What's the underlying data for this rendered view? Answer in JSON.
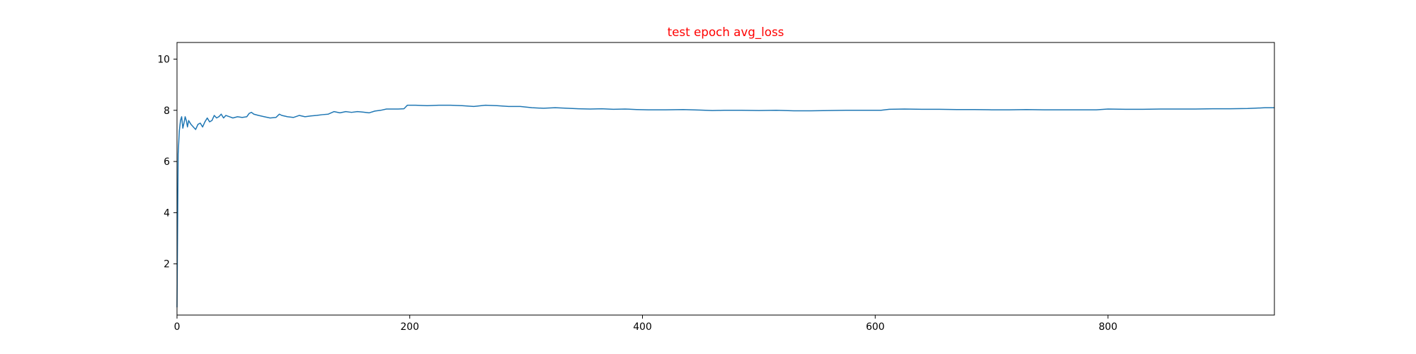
{
  "chart_data": {
    "type": "line",
    "title": "test epoch avg_loss",
    "title_color": "#ff0000",
    "line_color": "#1f77b4",
    "xlabel": "",
    "ylabel": "",
    "xlim": [
      0,
      943
    ],
    "ylim": [
      0.0,
      10.65
    ],
    "xticks": [
      0,
      200,
      400,
      600,
      800
    ],
    "yticks": [
      2,
      4,
      6,
      8,
      10
    ],
    "grid": false,
    "legend": "none",
    "series": [
      {
        "name": "avg_loss",
        "points": [
          [
            0,
            0.3
          ],
          [
            1,
            6.3
          ],
          [
            2,
            7.2
          ],
          [
            3,
            7.6
          ],
          [
            4,
            7.75
          ],
          [
            5,
            7.3
          ],
          [
            6,
            7.5
          ],
          [
            7,
            7.75
          ],
          [
            8,
            7.6
          ],
          [
            9,
            7.35
          ],
          [
            10,
            7.6
          ],
          [
            12,
            7.45
          ],
          [
            14,
            7.35
          ],
          [
            16,
            7.25
          ],
          [
            18,
            7.45
          ],
          [
            20,
            7.5
          ],
          [
            22,
            7.35
          ],
          [
            24,
            7.55
          ],
          [
            26,
            7.7
          ],
          [
            28,
            7.55
          ],
          [
            30,
            7.6
          ],
          [
            32,
            7.8
          ],
          [
            34,
            7.7
          ],
          [
            36,
            7.75
          ],
          [
            38,
            7.85
          ],
          [
            40,
            7.7
          ],
          [
            42,
            7.8
          ],
          [
            45,
            7.75
          ],
          [
            48,
            7.7
          ],
          [
            52,
            7.75
          ],
          [
            56,
            7.72
          ],
          [
            60,
            7.75
          ],
          [
            62,
            7.88
          ],
          [
            64,
            7.92
          ],
          [
            66,
            7.85
          ],
          [
            70,
            7.8
          ],
          [
            75,
            7.75
          ],
          [
            80,
            7.7
          ],
          [
            85,
            7.72
          ],
          [
            88,
            7.85
          ],
          [
            90,
            7.8
          ],
          [
            95,
            7.75
          ],
          [
            100,
            7.72
          ],
          [
            105,
            7.8
          ],
          [
            110,
            7.75
          ],
          [
            115,
            7.78
          ],
          [
            120,
            7.8
          ],
          [
            125,
            7.83
          ],
          [
            130,
            7.85
          ],
          [
            135,
            7.95
          ],
          [
            140,
            7.9
          ],
          [
            145,
            7.95
          ],
          [
            150,
            7.92
          ],
          [
            155,
            7.95
          ],
          [
            160,
            7.93
          ],
          [
            165,
            7.9
          ],
          [
            170,
            7.97
          ],
          [
            175,
            8.0
          ],
          [
            180,
            8.05
          ],
          [
            185,
            8.05
          ],
          [
            190,
            8.05
          ],
          [
            195,
            8.06
          ],
          [
            198,
            8.2
          ],
          [
            205,
            8.2
          ],
          [
            215,
            8.18
          ],
          [
            225,
            8.2
          ],
          [
            235,
            8.2
          ],
          [
            245,
            8.18
          ],
          [
            255,
            8.15
          ],
          [
            265,
            8.2
          ],
          [
            275,
            8.18
          ],
          [
            285,
            8.15
          ],
          [
            295,
            8.15
          ],
          [
            305,
            8.1
          ],
          [
            315,
            8.08
          ],
          [
            325,
            8.1
          ],
          [
            335,
            8.08
          ],
          [
            345,
            8.06
          ],
          [
            355,
            8.05
          ],
          [
            365,
            8.06
          ],
          [
            375,
            8.04
          ],
          [
            385,
            8.05
          ],
          [
            395,
            8.03
          ],
          [
            405,
            8.02
          ],
          [
            420,
            8.02
          ],
          [
            435,
            8.03
          ],
          [
            450,
            8.01
          ],
          [
            460,
            7.99
          ],
          [
            470,
            8.0
          ],
          [
            485,
            8.0
          ],
          [
            500,
            7.99
          ],
          [
            515,
            8.0
          ],
          [
            530,
            7.98
          ],
          [
            545,
            7.98
          ],
          [
            560,
            7.99
          ],
          [
            575,
            8.0
          ],
          [
            590,
            8.0
          ],
          [
            605,
            8.0
          ],
          [
            612,
            8.04
          ],
          [
            625,
            8.05
          ],
          [
            640,
            8.04
          ],
          [
            655,
            8.04
          ],
          [
            670,
            8.03
          ],
          [
            685,
            8.03
          ],
          [
            700,
            8.02
          ],
          [
            715,
            8.02
          ],
          [
            730,
            8.03
          ],
          [
            745,
            8.02
          ],
          [
            760,
            8.02
          ],
          [
            775,
            8.02
          ],
          [
            790,
            8.02
          ],
          [
            800,
            8.05
          ],
          [
            815,
            8.04
          ],
          [
            830,
            8.04
          ],
          [
            845,
            8.05
          ],
          [
            860,
            8.05
          ],
          [
            875,
            8.05
          ],
          [
            890,
            8.06
          ],
          [
            905,
            8.06
          ],
          [
            920,
            8.07
          ],
          [
            935,
            8.1
          ],
          [
            943,
            8.1
          ]
        ]
      }
    ]
  }
}
